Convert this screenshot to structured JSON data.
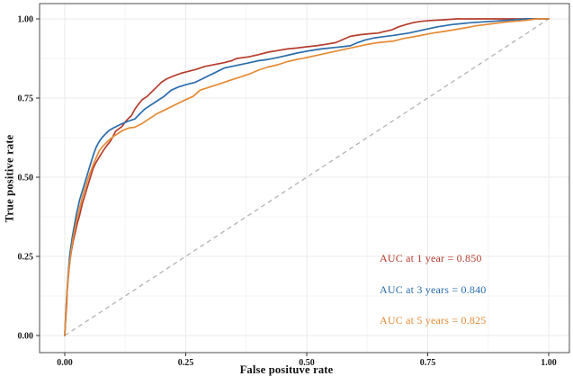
{
  "chart_data": {
    "type": "line",
    "subtype": "roc-curves",
    "title": "",
    "xlabel": "False posituve rate",
    "ylabel": "True positive rate",
    "xlim": [
      0,
      1
    ],
    "ylim": [
      0,
      1
    ],
    "x_ticks": [
      "0.00",
      "0.25",
      "0.50",
      "0.75",
      "1.00"
    ],
    "y_ticks": [
      "0.00",
      "0.25",
      "0.50",
      "0.75",
      "1.00"
    ],
    "minor_grid_positions": [
      0.125,
      0.375,
      0.625,
      0.875
    ],
    "grid": "major and minor gridlines, white panel, gray panel border",
    "legend_position": "inside lower-right",
    "colors": {
      "grid_major": "#ebebeb",
      "grid_minor": "#f5f5f5",
      "panel_border": "#4d4d4d",
      "tick": "#333333",
      "tick_label": "#1a1a1a",
      "reference_line": "#b3b3b3"
    },
    "reference_line": {
      "type": "diagonal",
      "style": "dashed",
      "from": [
        0,
        0
      ],
      "to": [
        1,
        1
      ]
    },
    "series": [
      {
        "name": "AUC at 1 year = 0.850",
        "auc": 0.85,
        "color": "#b53d2d",
        "points": [
          [
            0,
            0
          ],
          [
            0.002,
            0.055
          ],
          [
            0.004,
            0.1
          ],
          [
            0.005,
            0.14
          ],
          [
            0.007,
            0.18
          ],
          [
            0.009,
            0.21
          ],
          [
            0.011,
            0.24
          ],
          [
            0.014,
            0.27
          ],
          [
            0.017,
            0.295
          ],
          [
            0.02,
            0.315
          ],
          [
            0.023,
            0.335
          ],
          [
            0.026,
            0.355
          ],
          [
            0.03,
            0.375
          ],
          [
            0.033,
            0.395
          ],
          [
            0.036,
            0.415
          ],
          [
            0.04,
            0.435
          ],
          [
            0.044,
            0.455
          ],
          [
            0.048,
            0.475
          ],
          [
            0.053,
            0.5
          ],
          [
            0.058,
            0.525
          ],
          [
            0.064,
            0.545
          ],
          [
            0.072,
            0.565
          ],
          [
            0.08,
            0.585
          ],
          [
            0.087,
            0.6
          ],
          [
            0.095,
            0.615
          ],
          [
            0.1,
            0.63
          ],
          [
            0.105,
            0.645
          ],
          [
            0.112,
            0.653
          ],
          [
            0.118,
            0.66
          ],
          [
            0.125,
            0.675
          ],
          [
            0.131,
            0.685
          ],
          [
            0.138,
            0.695
          ],
          [
            0.145,
            0.715
          ],
          [
            0.152,
            0.73
          ],
          [
            0.16,
            0.745
          ],
          [
            0.17,
            0.755
          ],
          [
            0.18,
            0.77
          ],
          [
            0.19,
            0.785
          ],
          [
            0.2,
            0.8
          ],
          [
            0.21,
            0.81
          ],
          [
            0.225,
            0.82
          ],
          [
            0.24,
            0.828
          ],
          [
            0.25,
            0.832
          ],
          [
            0.27,
            0.84
          ],
          [
            0.29,
            0.85
          ],
          [
            0.31,
            0.856
          ],
          [
            0.33,
            0.862
          ],
          [
            0.345,
            0.868
          ],
          [
            0.355,
            0.875
          ],
          [
            0.38,
            0.88
          ],
          [
            0.4,
            0.887
          ],
          [
            0.42,
            0.895
          ],
          [
            0.44,
            0.9
          ],
          [
            0.46,
            0.905
          ],
          [
            0.48,
            0.908
          ],
          [
            0.5,
            0.912
          ],
          [
            0.52,
            0.915
          ],
          [
            0.54,
            0.92
          ],
          [
            0.56,
            0.925
          ],
          [
            0.575,
            0.935
          ],
          [
            0.59,
            0.945
          ],
          [
            0.61,
            0.95
          ],
          [
            0.63,
            0.953
          ],
          [
            0.647,
            0.955
          ],
          [
            0.66,
            0.96
          ],
          [
            0.675,
            0.965
          ],
          [
            0.69,
            0.975
          ],
          [
            0.705,
            0.982
          ],
          [
            0.72,
            0.988
          ],
          [
            0.735,
            0.992
          ],
          [
            0.755,
            0.995
          ],
          [
            0.78,
            0.997
          ],
          [
            0.81,
            1
          ],
          [
            1,
            1
          ]
        ]
      },
      {
        "name": "AUC at 3 years = 0.840",
        "auc": 0.84,
        "color": "#2b6cab",
        "points": [
          [
            0,
            0
          ],
          [
            0.002,
            0.07
          ],
          [
            0.004,
            0.125
          ],
          [
            0.006,
            0.17
          ],
          [
            0.008,
            0.21
          ],
          [
            0.01,
            0.25
          ],
          [
            0.013,
            0.285
          ],
          [
            0.016,
            0.315
          ],
          [
            0.019,
            0.34
          ],
          [
            0.022,
            0.365
          ],
          [
            0.025,
            0.39
          ],
          [
            0.028,
            0.41
          ],
          [
            0.031,
            0.43
          ],
          [
            0.035,
            0.45
          ],
          [
            0.039,
            0.47
          ],
          [
            0.043,
            0.49
          ],
          [
            0.047,
            0.51
          ],
          [
            0.051,
            0.53
          ],
          [
            0.056,
            0.555
          ],
          [
            0.06,
            0.575
          ],
          [
            0.065,
            0.595
          ],
          [
            0.07,
            0.61
          ],
          [
            0.077,
            0.625
          ],
          [
            0.085,
            0.638
          ],
          [
            0.092,
            0.648
          ],
          [
            0.1,
            0.655
          ],
          [
            0.11,
            0.663
          ],
          [
            0.12,
            0.67
          ],
          [
            0.13,
            0.676
          ],
          [
            0.145,
            0.684
          ],
          [
            0.155,
            0.7
          ],
          [
            0.165,
            0.715
          ],
          [
            0.175,
            0.725
          ],
          [
            0.19,
            0.74
          ],
          [
            0.205,
            0.755
          ],
          [
            0.22,
            0.775
          ],
          [
            0.235,
            0.785
          ],
          [
            0.25,
            0.792
          ],
          [
            0.27,
            0.8
          ],
          [
            0.29,
            0.815
          ],
          [
            0.31,
            0.83
          ],
          [
            0.33,
            0.845
          ],
          [
            0.355,
            0.853
          ],
          [
            0.38,
            0.861
          ],
          [
            0.4,
            0.868
          ],
          [
            0.42,
            0.872
          ],
          [
            0.44,
            0.878
          ],
          [
            0.46,
            0.885
          ],
          [
            0.48,
            0.892
          ],
          [
            0.5,
            0.898
          ],
          [
            0.53,
            0.905
          ],
          [
            0.56,
            0.91
          ],
          [
            0.59,
            0.915
          ],
          [
            0.605,
            0.925
          ],
          [
            0.62,
            0.933
          ],
          [
            0.64,
            0.94
          ],
          [
            0.66,
            0.944
          ],
          [
            0.68,
            0.948
          ],
          [
            0.71,
            0.955
          ],
          [
            0.74,
            0.965
          ],
          [
            0.77,
            0.975
          ],
          [
            0.8,
            0.982
          ],
          [
            0.84,
            0.988
          ],
          [
            0.88,
            0.992
          ],
          [
            0.92,
            0.996
          ],
          [
            0.955,
            1
          ],
          [
            1,
            1
          ]
        ]
      },
      {
        "name": "AUC at 5 years = 0.825",
        "auc": 0.825,
        "color": "#e58a35",
        "points": [
          [
            0,
            0
          ],
          [
            0.002,
            0.065
          ],
          [
            0.004,
            0.12
          ],
          [
            0.006,
            0.165
          ],
          [
            0.008,
            0.2
          ],
          [
            0.011,
            0.24
          ],
          [
            0.014,
            0.275
          ],
          [
            0.017,
            0.305
          ],
          [
            0.02,
            0.33
          ],
          [
            0.024,
            0.36
          ],
          [
            0.028,
            0.385
          ],
          [
            0.032,
            0.41
          ],
          [
            0.036,
            0.435
          ],
          [
            0.04,
            0.455
          ],
          [
            0.044,
            0.475
          ],
          [
            0.049,
            0.5
          ],
          [
            0.054,
            0.52
          ],
          [
            0.06,
            0.545
          ],
          [
            0.066,
            0.565
          ],
          [
            0.072,
            0.585
          ],
          [
            0.08,
            0.6
          ],
          [
            0.09,
            0.615
          ],
          [
            0.1,
            0.628
          ],
          [
            0.11,
            0.638
          ],
          [
            0.12,
            0.648
          ],
          [
            0.132,
            0.655
          ],
          [
            0.145,
            0.658
          ],
          [
            0.16,
            0.67
          ],
          [
            0.175,
            0.685
          ],
          [
            0.19,
            0.7
          ],
          [
            0.21,
            0.715
          ],
          [
            0.23,
            0.73
          ],
          [
            0.25,
            0.745
          ],
          [
            0.265,
            0.755
          ],
          [
            0.28,
            0.775
          ],
          [
            0.3,
            0.785
          ],
          [
            0.32,
            0.795
          ],
          [
            0.34,
            0.805
          ],
          [
            0.36,
            0.815
          ],
          [
            0.38,
            0.825
          ],
          [
            0.4,
            0.838
          ],
          [
            0.42,
            0.848
          ],
          [
            0.44,
            0.855
          ],
          [
            0.46,
            0.865
          ],
          [
            0.48,
            0.872
          ],
          [
            0.5,
            0.878
          ],
          [
            0.53,
            0.888
          ],
          [
            0.56,
            0.898
          ],
          [
            0.59,
            0.908
          ],
          [
            0.62,
            0.918
          ],
          [
            0.647,
            0.925
          ],
          [
            0.68,
            0.93
          ],
          [
            0.7,
            0.938
          ],
          [
            0.73,
            0.946
          ],
          [
            0.76,
            0.955
          ],
          [
            0.79,
            0.962
          ],
          [
            0.82,
            0.97
          ],
          [
            0.85,
            0.978
          ],
          [
            0.88,
            0.984
          ],
          [
            0.91,
            0.99
          ],
          [
            0.95,
            0.995
          ],
          [
            0.975,
            1
          ],
          [
            1,
            1
          ]
        ]
      }
    ]
  },
  "legend": {
    "items": [
      {
        "label": "AUC at 1 year = 0.850",
        "color": "#b53d2d"
      },
      {
        "label": "AUC at 3 years = 0.840",
        "color": "#2b6cab"
      },
      {
        "label": "AUC at 5 years = 0.825",
        "color": "#e58a35"
      }
    ]
  }
}
